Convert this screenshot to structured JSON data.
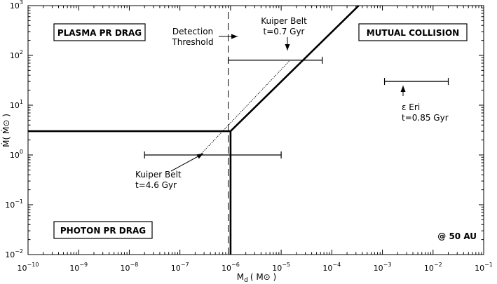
{
  "chart_data": {
    "type": "scatter",
    "title": "",
    "xscale": "log",
    "yscale": "log",
    "xlim": [
      1e-10,
      0.1
    ],
    "ylim": [
      0.01,
      1000
    ],
    "grid": false,
    "xlabel": {
      "main": "M",
      "sub": "d",
      "unit": "( M⊙ )"
    },
    "ylabel": {
      "main": "Ṁ( Ṁ⊙ )"
    },
    "x_ticks": [
      {
        "value": 1e-10,
        "base": "10",
        "exp": "−10"
      },
      {
        "value": 1e-09,
        "base": "10",
        "exp": "−9"
      },
      {
        "value": 1e-08,
        "base": "10",
        "exp": "−8"
      },
      {
        "value": 1e-07,
        "base": "10",
        "exp": "−7"
      },
      {
        "value": 1e-06,
        "base": "10",
        "exp": "−6"
      },
      {
        "value": 1e-05,
        "base": "10",
        "exp": "−5"
      },
      {
        "value": 0.0001,
        "base": "10",
        "exp": "−4"
      },
      {
        "value": 0.001,
        "base": "10",
        "exp": "−3"
      },
      {
        "value": 0.01,
        "base": "10",
        "exp": "−2"
      },
      {
        "value": 0.1,
        "base": "10",
        "exp": "−1"
      }
    ],
    "y_ticks": [
      {
        "value": 0.01,
        "base": "10",
        "exp": "−2"
      },
      {
        "value": 0.1,
        "base": "10",
        "exp": "−1"
      },
      {
        "value": 1,
        "base": "10",
        "exp": "0"
      },
      {
        "value": 10,
        "base": "10",
        "exp": "1"
      },
      {
        "value": 100,
        "base": "10",
        "exp": "2"
      },
      {
        "value": 1000,
        "base": "10",
        "exp": "3"
      }
    ],
    "boundaries": [
      {
        "id": "pr-boundary-horizontal",
        "style": "thick",
        "points": [
          [
            1e-10,
            3
          ],
          [
            1e-06,
            3
          ]
        ]
      },
      {
        "id": "pr-boundary-vertical",
        "style": "thick",
        "points": [
          [
            1e-06,
            0.01
          ],
          [
            1e-06,
            3
          ]
        ]
      },
      {
        "id": "collision-boundary",
        "style": "thick",
        "points": [
          [
            1e-06,
            3
          ],
          [
            0.00034,
            1000
          ]
        ]
      },
      {
        "id": "detection-threshold-line",
        "style": "dashed",
        "points": [
          [
            9e-07,
            0.01
          ],
          [
            9e-07,
            1000
          ]
        ]
      },
      {
        "id": "kuiper-evolution-track",
        "style": "dotted",
        "points": [
          [
            2.5e-07,
            1
          ],
          [
            1.5e-05,
            80
          ]
        ]
      }
    ],
    "points": [
      {
        "id": "kuiper-belt-4.6",
        "x": 2.5e-07,
        "y": 1,
        "xerr": [
          2e-08,
          1e-05
        ]
      },
      {
        "id": "kuiper-belt-0.7",
        "x": 1.5e-05,
        "y": 80,
        "xerr": [
          9e-07,
          6.5e-05
        ]
      },
      {
        "id": "eps-eri",
        "x": 0.004,
        "y": 30,
        "xerr": [
          0.0011,
          0.02
        ]
      }
    ],
    "regions": {
      "plasma": "PLASMA PR DRAG",
      "collision": "MUTUAL COLLISION",
      "photon": "PHOTON PR DRAG"
    },
    "annotations": {
      "detection": [
        "Detection",
        "Threshold"
      ],
      "kuiper_young": [
        "Kuiper Belt",
        "t=0.7 Gyr"
      ],
      "kuiper_old": [
        "Kuiper Belt",
        "t=4.6 Gyr"
      ],
      "eps_eri": [
        "ε Eri",
        "t=0.85 Gyr"
      ],
      "distance": "@ 50 AU"
    }
  }
}
